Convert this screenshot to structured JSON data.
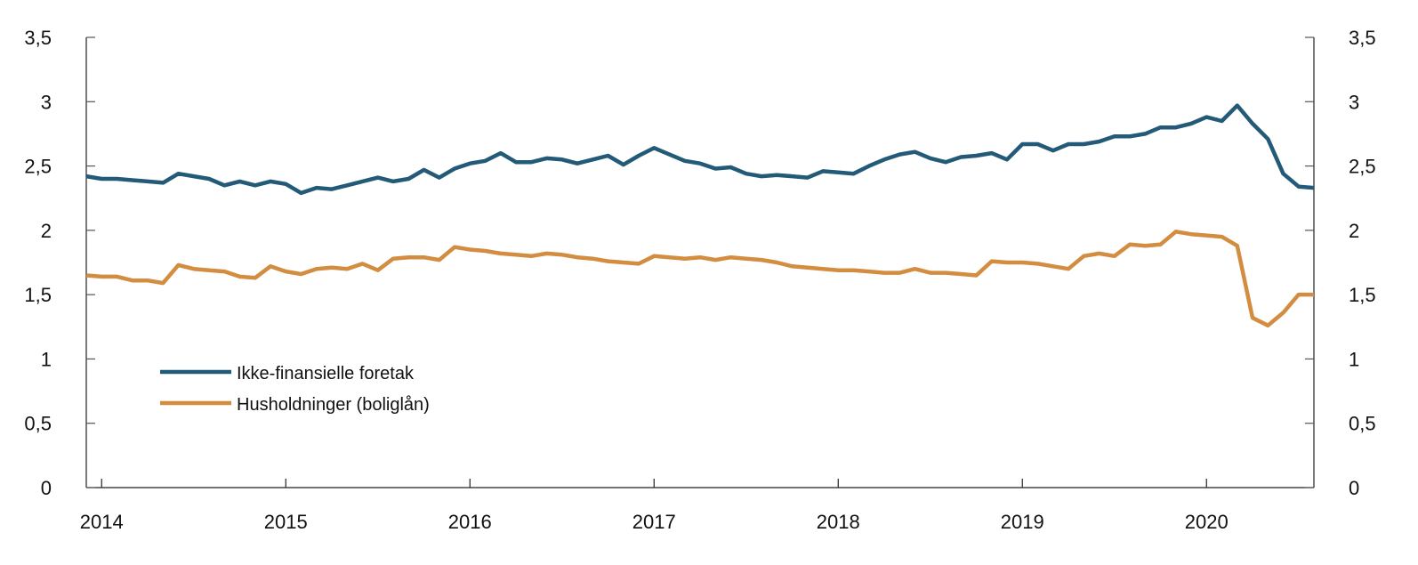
{
  "chart_data": {
    "type": "line",
    "title": "",
    "xlabel": "",
    "ylabel": "",
    "ylim": [
      0,
      3.5
    ],
    "yticks": [
      0,
      0.5,
      1,
      1.5,
      2,
      2.5,
      3,
      3.5
    ],
    "ytick_labels": [
      "0",
      "0,5",
      "1",
      "1,5",
      "2",
      "2,5",
      "3",
      "3,5"
    ],
    "x_start": "2013-12",
    "x_end": "2020-08",
    "frequency": "monthly",
    "xtick_labels": [
      "2014",
      "2015",
      "2016",
      "2017",
      "2018",
      "2019",
      "2020"
    ],
    "grid": false,
    "legend_placement": "bottom-left",
    "series": [
      {
        "name": "Ikke-finansielle foretak",
        "color": "#235a78",
        "values": [
          2.42,
          2.4,
          2.4,
          2.39,
          2.38,
          2.37,
          2.44,
          2.42,
          2.4,
          2.35,
          2.38,
          2.35,
          2.38,
          2.36,
          2.29,
          2.33,
          2.32,
          2.35,
          2.38,
          2.41,
          2.38,
          2.4,
          2.47,
          2.41,
          2.48,
          2.52,
          2.54,
          2.6,
          2.53,
          2.53,
          2.56,
          2.55,
          2.52,
          2.55,
          2.58,
          2.51,
          2.58,
          2.64,
          2.59,
          2.54,
          2.52,
          2.48,
          2.49,
          2.44,
          2.42,
          2.43,
          2.42,
          2.41,
          2.46,
          2.45,
          2.44,
          2.5,
          2.55,
          2.59,
          2.61,
          2.56,
          2.53,
          2.57,
          2.58,
          2.6,
          2.55,
          2.67,
          2.67,
          2.62,
          2.67,
          2.67,
          2.69,
          2.73,
          2.73,
          2.75,
          2.8,
          2.8,
          2.83,
          2.88,
          2.85,
          2.97,
          2.83,
          2.71,
          2.44,
          2.34,
          2.33
        ]
      },
      {
        "name": "Husholdninger (boliglån)",
        "color": "#d38d40",
        "values": [
          1.65,
          1.64,
          1.64,
          1.61,
          1.61,
          1.59,
          1.73,
          1.7,
          1.69,
          1.68,
          1.64,
          1.63,
          1.72,
          1.68,
          1.66,
          1.7,
          1.71,
          1.7,
          1.74,
          1.69,
          1.78,
          1.79,
          1.79,
          1.77,
          1.87,
          1.85,
          1.84,
          1.82,
          1.81,
          1.8,
          1.82,
          1.81,
          1.79,
          1.78,
          1.76,
          1.75,
          1.74,
          1.8,
          1.79,
          1.78,
          1.79,
          1.77,
          1.79,
          1.78,
          1.77,
          1.75,
          1.72,
          1.71,
          1.7,
          1.69,
          1.69,
          1.68,
          1.67,
          1.67,
          1.7,
          1.67,
          1.67,
          1.66,
          1.65,
          1.76,
          1.75,
          1.75,
          1.74,
          1.72,
          1.7,
          1.8,
          1.82,
          1.8,
          1.89,
          1.88,
          1.89,
          1.99,
          1.97,
          1.96,
          1.95,
          1.88,
          1.32,
          1.26,
          1.36,
          1.5,
          1.5
        ]
      }
    ]
  }
}
